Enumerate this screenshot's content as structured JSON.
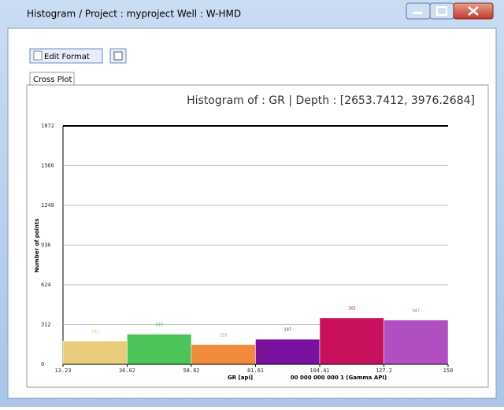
{
  "window": {
    "title": "Histogram / Project : myproject Well : W-HMD",
    "edit_button": "Edit Format",
    "tab": "Cross Plot"
  },
  "chart_data": {
    "type": "histogram",
    "title": "Histogram of : GR | Depth : [2653.7412, 3976.2684]",
    "x_label": "GR [api]",
    "x_sublabel": "00 000 000 000 1 (Gamma API)",
    "y_label": "Number of points",
    "bins": [
      13.23,
      36.02,
      58.82,
      81.61,
      104.41,
      127.2,
      150
    ],
    "values": [
      183,
      237,
      155,
      197,
      365,
      347
    ],
    "colors": [
      "#e8cc7c",
      "#4cc45a",
      "#f08a3a",
      "#7a12a0",
      "#c8105c",
      "#b04ec2"
    ],
    "xlim": [
      13.23,
      150
    ],
    "xticks": [
      13.23,
      36.02,
      58.82,
      81.61,
      104.41,
      127.2,
      150
    ],
    "ylim": [
      0,
      1872
    ],
    "yticks": [
      0,
      312,
      624,
      936,
      1248,
      1560,
      1872
    ],
    "grid": true
  }
}
